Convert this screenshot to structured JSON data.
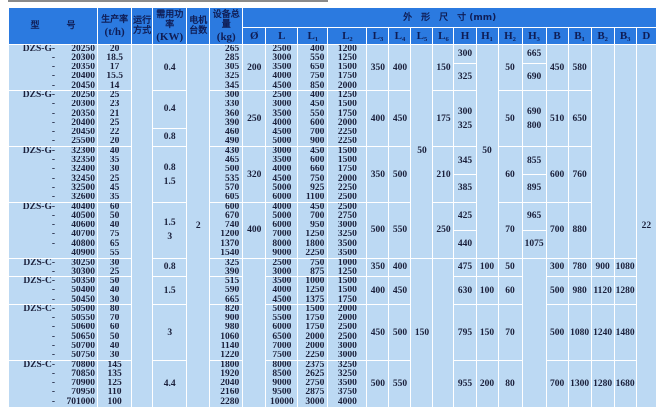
{
  "header": {
    "model": "型　　　号",
    "capacity": "生产率",
    "capacity_unit": "(t/h)",
    "mode": "运行方式",
    "power": "需用功率",
    "power_unit": "(KW)",
    "motors": "电机台数",
    "weight": "设备总量",
    "weight_unit": "(kg)",
    "dims": "外　形　尺　寸 (mm)",
    "dim_cols": [
      "Ø",
      "L",
      "L₁",
      "L₂",
      "L₃",
      "L₄",
      "L₅",
      "L₆",
      "H",
      "H₁",
      "H₂",
      "H₃",
      "B",
      "B₁",
      "B₂",
      "B₃",
      "D"
    ]
  },
  "merged": {
    "mode": "",
    "motors": "2",
    "L5_G": "50",
    "L5_C": "150",
    "H1_G": "50",
    "D": "22"
  },
  "groups": [
    {
      "rows": [
        [
          "DZS-G-",
          "20250",
          "20",
          "265",
          "2500",
          "400",
          "1200"
        ],
        [
          "-",
          "20300",
          "18.5",
          "285",
          "3000",
          "550",
          "1250"
        ],
        [
          "-",
          "20350",
          "17",
          "305",
          "3500",
          "650",
          "1500"
        ],
        [
          "-",
          "20400",
          "15.5",
          "325",
          "4000",
          "750",
          "1750"
        ],
        [
          "-",
          "20450",
          "14",
          "345",
          "4500",
          "850",
          "2000"
        ]
      ],
      "power": [
        [
          "0.4"
        ]
      ],
      "diameter": "200",
      "L3": "350",
      "L4": "400",
      "L6": "150",
      "H": [
        [
          "300"
        ],
        [
          "325"
        ]
      ],
      "H2": "50",
      "H3": [
        [
          "665"
        ],
        [
          "690"
        ]
      ],
      "B": "450",
      "B1": "580"
    },
    {
      "rows": [
        [
          "DZS-G-",
          "20250",
          "25",
          "300",
          "2500",
          "400",
          "1250"
        ],
        [
          "-",
          "20300",
          "23",
          "330",
          "3000",
          "450",
          "1500"
        ],
        [
          "-",
          "20350",
          "21",
          "360",
          "3500",
          "550",
          "1750"
        ],
        [
          "-",
          "20400",
          "25",
          "390",
          "4000",
          "600",
          "2000"
        ],
        [
          "-",
          "20450",
          "22",
          "460",
          "4500",
          "700",
          "2250"
        ],
        [
          "-",
          "25500",
          "20",
          "490",
          "5000",
          "900",
          "2250"
        ]
      ],
      "power": [
        [
          "0.4"
        ],
        [
          "0.8"
        ]
      ],
      "diameter": "250",
      "L3": "400",
      "L4": "450",
      "L6": "175",
      "H": [
        [
          "300",
          "325"
        ]
      ],
      "H2": "50",
      "H3": [
        [
          "690",
          "800"
        ]
      ],
      "B": "510",
      "B1": "650"
    },
    {
      "rows": [
        [
          "DZS-G-",
          "32300",
          "40",
          "430",
          "3000",
          "450",
          "1500"
        ],
        [
          "-",
          "32350",
          "35",
          "465",
          "3500",
          "600",
          "1500"
        ],
        [
          "-",
          "32400",
          "30",
          "500",
          "4000",
          "660",
          "1750"
        ],
        [
          "-",
          "32450",
          "25",
          "535",
          "4500",
          "750",
          "2000"
        ],
        [
          "-",
          "32500",
          "45",
          "570",
          "5000",
          "925",
          "2250"
        ],
        [
          "-",
          "32600",
          "35",
          "605",
          "6000",
          "1100",
          "2500"
        ]
      ],
      "power": [
        [
          "0.8",
          "1.5"
        ]
      ],
      "diameter": "320",
      "L3": "350",
      "L4": "500",
      "L6": "210",
      "H": [
        [
          "345"
        ],
        [
          "385"
        ]
      ],
      "H2": "60",
      "H3": [
        [
          "855"
        ],
        [
          "895"
        ]
      ],
      "B": "600",
      "B1": "760"
    },
    {
      "rows": [
        [
          "DZS-G-",
          "40400",
          "60",
          "600",
          "4000",
          "450",
          "2500"
        ],
        [
          "-",
          "40500",
          "50",
          "670",
          "5000",
          "700",
          "2750"
        ],
        [
          "-",
          "40600",
          "40",
          "740",
          "6000",
          "950",
          "3000"
        ],
        [
          "-",
          "40700",
          "75",
          "1200",
          "7000",
          "1250",
          "3250"
        ],
        [
          "-",
          "40800",
          "65",
          "1370",
          "8000",
          "1800",
          "3500"
        ],
        [
          "",
          "40900",
          "55",
          "1540",
          "9000",
          "2250",
          "3500"
        ]
      ],
      "power": [
        [
          "1.5",
          "3"
        ]
      ],
      "diameter": "400",
      "L3": "500",
      "L4": "550",
      "L6": "250",
      "H": [
        [
          "425"
        ],
        [
          "440"
        ]
      ],
      "H2": "70",
      "H3": [
        [
          "965"
        ],
        [
          "1075"
        ]
      ],
      "B": "700",
      "B1": "880"
    },
    {
      "rows": [
        [
          "DZS-C-",
          "30250",
          "30",
          "325",
          "2500",
          "750",
          "1000"
        ],
        [
          "-",
          "30300",
          "25",
          "390",
          "3000",
          "875",
          "1250"
        ]
      ],
      "power": [
        [
          "0.8"
        ]
      ],
      "L3": "350",
      "L4": "400",
      "H": [
        [
          "475"
        ]
      ],
      "H1": "100",
      "H2": "50",
      "B": "300",
      "B1": "780",
      "B2": "900",
      "B3": "1080"
    },
    {
      "rows": [
        [
          "DZS-C-",
          "50350",
          "50",
          "515",
          "3500",
          "1000",
          "1500"
        ],
        [
          "-",
          "50400",
          "40",
          "590",
          "4000",
          "1250",
          "1500"
        ],
        [
          "-",
          "50450",
          "30",
          "665",
          "4500",
          "1375",
          "1750"
        ]
      ],
      "power": [
        [
          "1.5"
        ]
      ],
      "L3": "400",
      "L4": "450",
      "H": [
        [
          "630"
        ]
      ],
      "H1": "100",
      "H2": "60",
      "B": "500",
      "B1": "980",
      "B2": "1120",
      "B3": "1280"
    },
    {
      "rows": [
        [
          "DZS-C-",
          "50500",
          "80",
          "820",
          "5000",
          "1500",
          "2000"
        ],
        [
          "-",
          "50550",
          "70",
          "900",
          "5500",
          "1750",
          "2000"
        ],
        [
          "-",
          "50600",
          "60",
          "980",
          "6000",
          "1750",
          "2500"
        ],
        [
          "-",
          "50650",
          "50",
          "1060",
          "6500",
          "2000",
          "2500"
        ],
        [
          "-",
          "50700",
          "40",
          "1140",
          "7000",
          "2000",
          "3000"
        ],
        [
          "-",
          "50750",
          "30",
          "1220",
          "7500",
          "2250",
          "3000"
        ]
      ],
      "power": [
        [
          "3"
        ]
      ],
      "L3": "450",
      "L4": "500",
      "H": [
        [
          "795"
        ]
      ],
      "H1": "150",
      "H2": "70",
      "B": "500",
      "B1": "1080",
      "B2": "1240",
      "B3": "1480"
    },
    {
      "rows": [
        [
          "DZS-C-",
          "70800",
          "145",
          "1800",
          "8000",
          "2375",
          "3250"
        ],
        [
          "-",
          "70850",
          "135",
          "1920",
          "8500",
          "2625",
          "3250"
        ],
        [
          "-",
          "70900",
          "125",
          "2040",
          "9000",
          "2750",
          "3500"
        ],
        [
          "-",
          "70950",
          "110",
          "2160",
          "9500",
          "2875",
          "3750"
        ],
        [
          "-",
          "701000",
          "100",
          "2280",
          "10000",
          "3000",
          "4000"
        ]
      ],
      "power": [
        [
          "4.4"
        ]
      ],
      "L3": "500",
      "L4": "550",
      "H": [
        [
          "955"
        ]
      ],
      "H1": "200",
      "H2": "80",
      "B": "700",
      "B1": "1300",
      "B2": "1280",
      "B3": "1680"
    }
  ]
}
